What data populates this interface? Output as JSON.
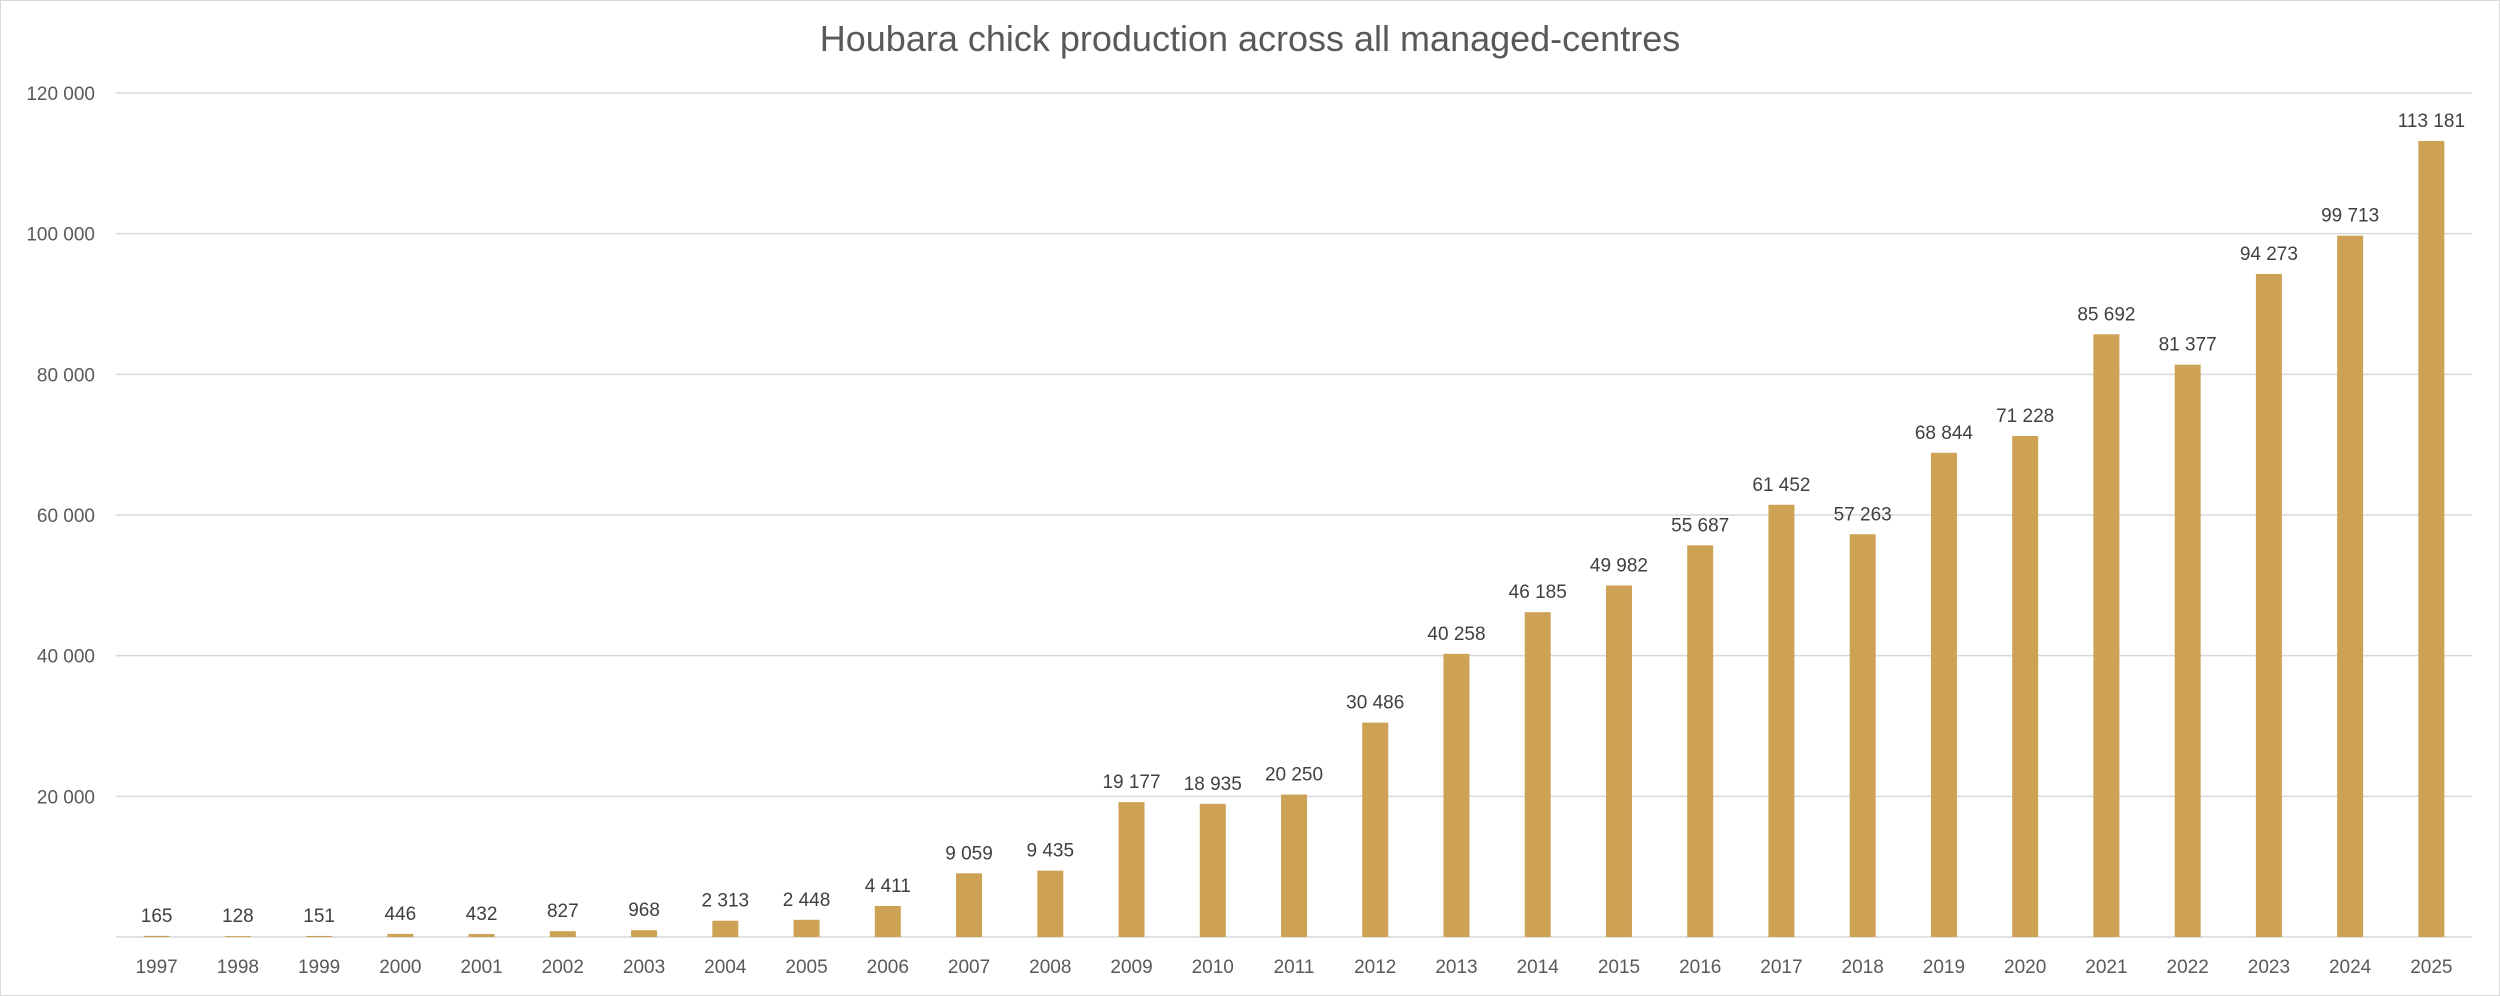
{
  "chart_data": {
    "type": "bar",
    "title": "Houbara chick production across all managed-centres",
    "xlabel": "",
    "ylabel": "",
    "categories": [
      "1997",
      "1998",
      "1999",
      "2000",
      "2001",
      "2002",
      "2003",
      "2004",
      "2005",
      "2006",
      "2007",
      "2008",
      "2009",
      "2010",
      "2011",
      "2012",
      "2013",
      "2014",
      "2015",
      "2016",
      "2017",
      "2018",
      "2019",
      "2020",
      "2021",
      "2022",
      "2023",
      "2024",
      "2025"
    ],
    "values": [
      165,
      128,
      151,
      446,
      432,
      827,
      968,
      2313,
      2448,
      4411,
      9059,
      9435,
      19177,
      18935,
      20250,
      30486,
      40258,
      46185,
      49982,
      55687,
      61452,
      57263,
      68844,
      71228,
      85692,
      81377,
      94273,
      99713,
      113181
    ],
    "data_labels": [
      "165",
      "128",
      "151",
      "446",
      "432",
      "827",
      "968",
      "2 313",
      "2 448",
      "4 411",
      "9 059",
      "9 435",
      "19 177",
      "18 935",
      "20 250",
      "30 486",
      "40 258",
      "46 185",
      "49 982",
      "55 687",
      "61 452",
      "57 263",
      "68 844",
      "71 228",
      "85 692",
      "81 377",
      "94 273",
      "99 713",
      "113 181"
    ],
    "ylim": [
      0,
      120000
    ],
    "y_ticks": [
      20000,
      40000,
      60000,
      80000,
      100000,
      120000
    ],
    "y_tick_labels": [
      "20 000",
      "40 000",
      "60 000",
      "80 000",
      "100 000",
      "120 000"
    ],
    "grid": true,
    "legend": "none",
    "colors": {
      "bar": "#CEA254",
      "grid": "#d9d9d9",
      "axis_text": "#595959",
      "label_text": "#404040",
      "title_text": "#595959"
    }
  }
}
